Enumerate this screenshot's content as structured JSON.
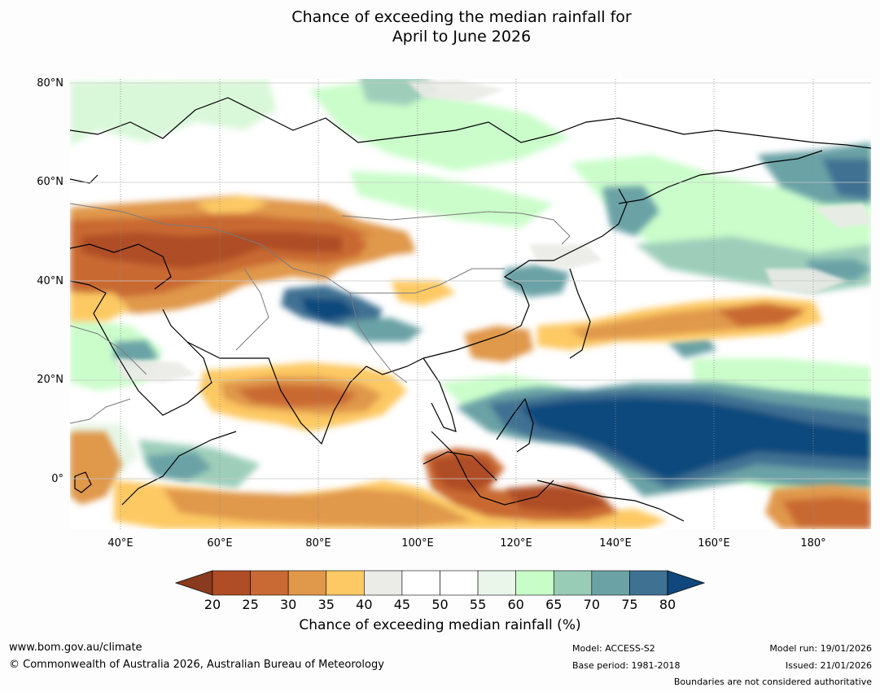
{
  "title": {
    "line1": "Chance of exceeding the median rainfall for",
    "line2": "April to June 2026"
  },
  "map": {
    "lat_labels": [
      "80°N",
      "60°N",
      "40°N",
      "20°N",
      "0°"
    ],
    "lon_labels": [
      "40°E",
      "60°E",
      "80°E",
      "100°E",
      "120°E",
      "140°E",
      "160°E",
      "180°"
    ],
    "extent": {
      "lon_min": 30,
      "lon_max": 190,
      "lat_min": -10,
      "lat_max": 80
    }
  },
  "colorbar": {
    "ticks": [
      "20",
      "25",
      "30",
      "35",
      "40",
      "45",
      "50",
      "55",
      "60",
      "65",
      "70",
      "75",
      "80"
    ],
    "colors": [
      "#ae4d26",
      "#c96933",
      "#e0984b",
      "#fdc964",
      "#ebebe7",
      "#ffffff",
      "#ffffff",
      "#eaf6ea",
      "#c8fdc8",
      "#99ccb7",
      "#6ba2a6",
      "#3f7193"
    ],
    "under_color": "#8a3a1f",
    "over_color": "#10487d",
    "label": "Chance of exceeding median rainfall (%)"
  },
  "footer": {
    "website": "www.bom.gov.au/climate",
    "copyright": "© Commonwealth of Australia 2026, Australian Bureau of Meteorology",
    "model": "Model: ACCESS-S2",
    "base_period": "Base period: 1981-2018",
    "model_run": "Model run: 19/01/2026",
    "issued": "Issued: 21/01/2026",
    "disclaimer": "Boundaries are not considered authoritative"
  }
}
